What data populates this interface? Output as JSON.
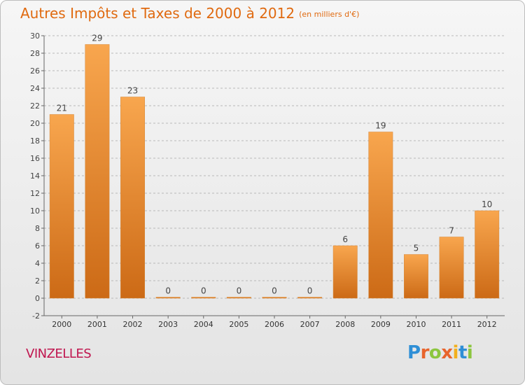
{
  "header": {
    "title": "Autres Impôts et Taxes de 2000 à 2012",
    "subtitle": "(en milliers d'€)"
  },
  "footer": {
    "place": "VINZELLES",
    "logo": "Proxiti"
  },
  "colors": {
    "bar_light": "#f8a64e",
    "bar_dark": "#cc6a16",
    "title": "#e06a10",
    "place": "#c0164f"
  },
  "chart_data": {
    "type": "bar",
    "title": "Autres Impôts et Taxes de 2000 à 2012",
    "subtitle": "(en milliers d'€)",
    "xlabel": "",
    "ylabel": "",
    "categories": [
      "2000",
      "2001",
      "2002",
      "2003",
      "2004",
      "2005",
      "2006",
      "2007",
      "2008",
      "2009",
      "2010",
      "2011",
      "2012"
    ],
    "values": [
      21,
      29,
      23,
      0,
      0,
      0,
      0,
      0,
      6,
      19,
      5,
      7,
      10
    ],
    "ylim": [
      -2,
      30
    ],
    "yticks": [
      -2,
      0,
      2,
      4,
      6,
      8,
      10,
      12,
      14,
      16,
      18,
      20,
      22,
      24,
      26,
      28,
      30
    ],
    "grid": "horizontal dashed",
    "legend": "none"
  }
}
